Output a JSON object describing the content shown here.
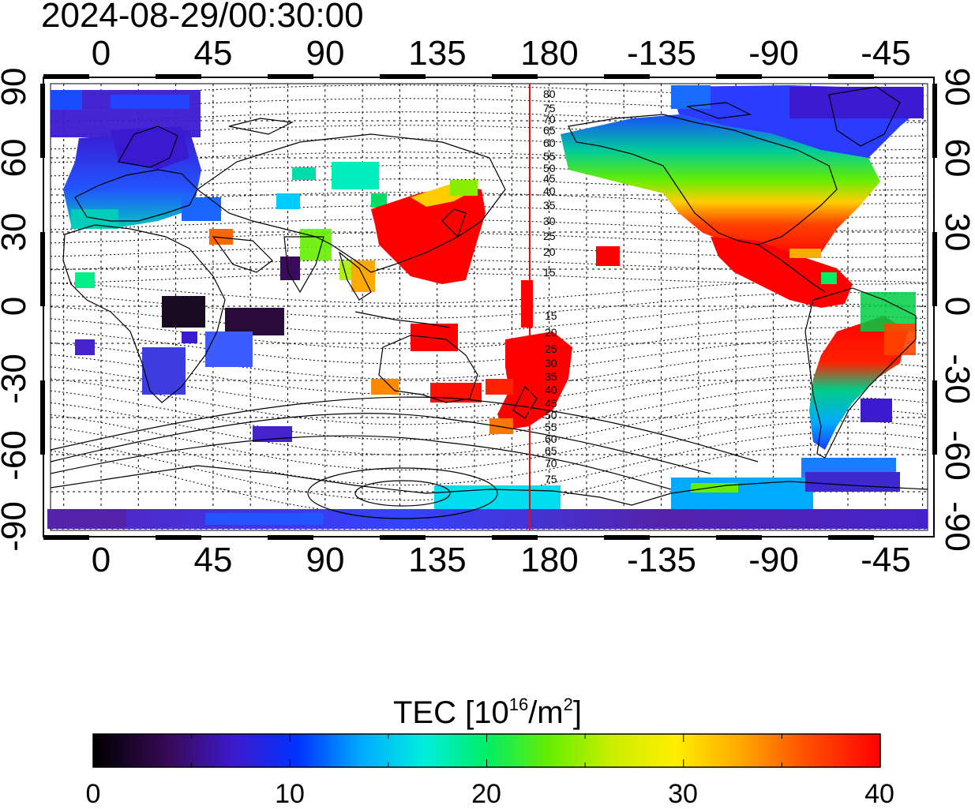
{
  "timestamp": "2024-08-29/00:30:00",
  "map": {
    "longitude_ticks": [
      "0",
      "45",
      "90",
      "135",
      "180",
      "-135",
      "-90",
      "-45"
    ],
    "latitude_ticks": [
      "90",
      "60",
      "30",
      "0",
      "-30",
      "-60",
      "-90"
    ],
    "terminator_labels": [
      "80",
      "75",
      "70",
      "65",
      "60",
      "55",
      "50",
      "45",
      "40",
      "35",
      "30",
      "25",
      "20",
      "15"
    ],
    "terminator_labels_south": [
      "15",
      "20",
      "25",
      "30",
      "35",
      "40",
      "45",
      "50",
      "55",
      "60",
      "65",
      "70",
      "75"
    ],
    "terminator_color": "#ff0000"
  },
  "colorbar": {
    "title_prefix": "TEC  [10",
    "title_exp": "16",
    "title_mid": "/m",
    "title_exp2": "2",
    "title_suffix": "]",
    "min": 0,
    "max": 40,
    "tick_labels": [
      "0",
      "10",
      "20",
      "30",
      "40"
    ],
    "colors": [
      "#000000",
      "#3a0a5c",
      "#3c1ad0",
      "#0033ff",
      "#00aaff",
      "#00eedd",
      "#00ee66",
      "#66ee00",
      "#ccee00",
      "#ffee00",
      "#ffaa00",
      "#ff5500",
      "#ff0000"
    ]
  }
}
